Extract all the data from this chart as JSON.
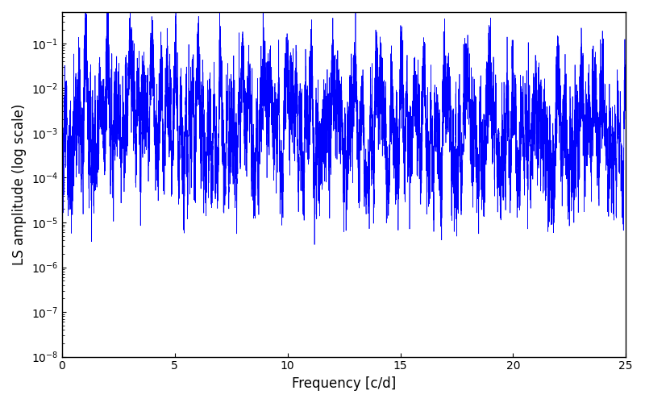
{
  "xlabel": "Frequency [c/d]",
  "ylabel": "LS amplitude (log scale)",
  "line_color": "#0000ff",
  "line_width": 0.5,
  "xlim": [
    0,
    25
  ],
  "ylim": [
    1e-08,
    0.5
  ],
  "background_color": "#ffffff",
  "figsize": [
    8.0,
    5.0
  ],
  "dpi": 100,
  "seed": 12345,
  "n_points": 8000,
  "freq_max": 25.0
}
